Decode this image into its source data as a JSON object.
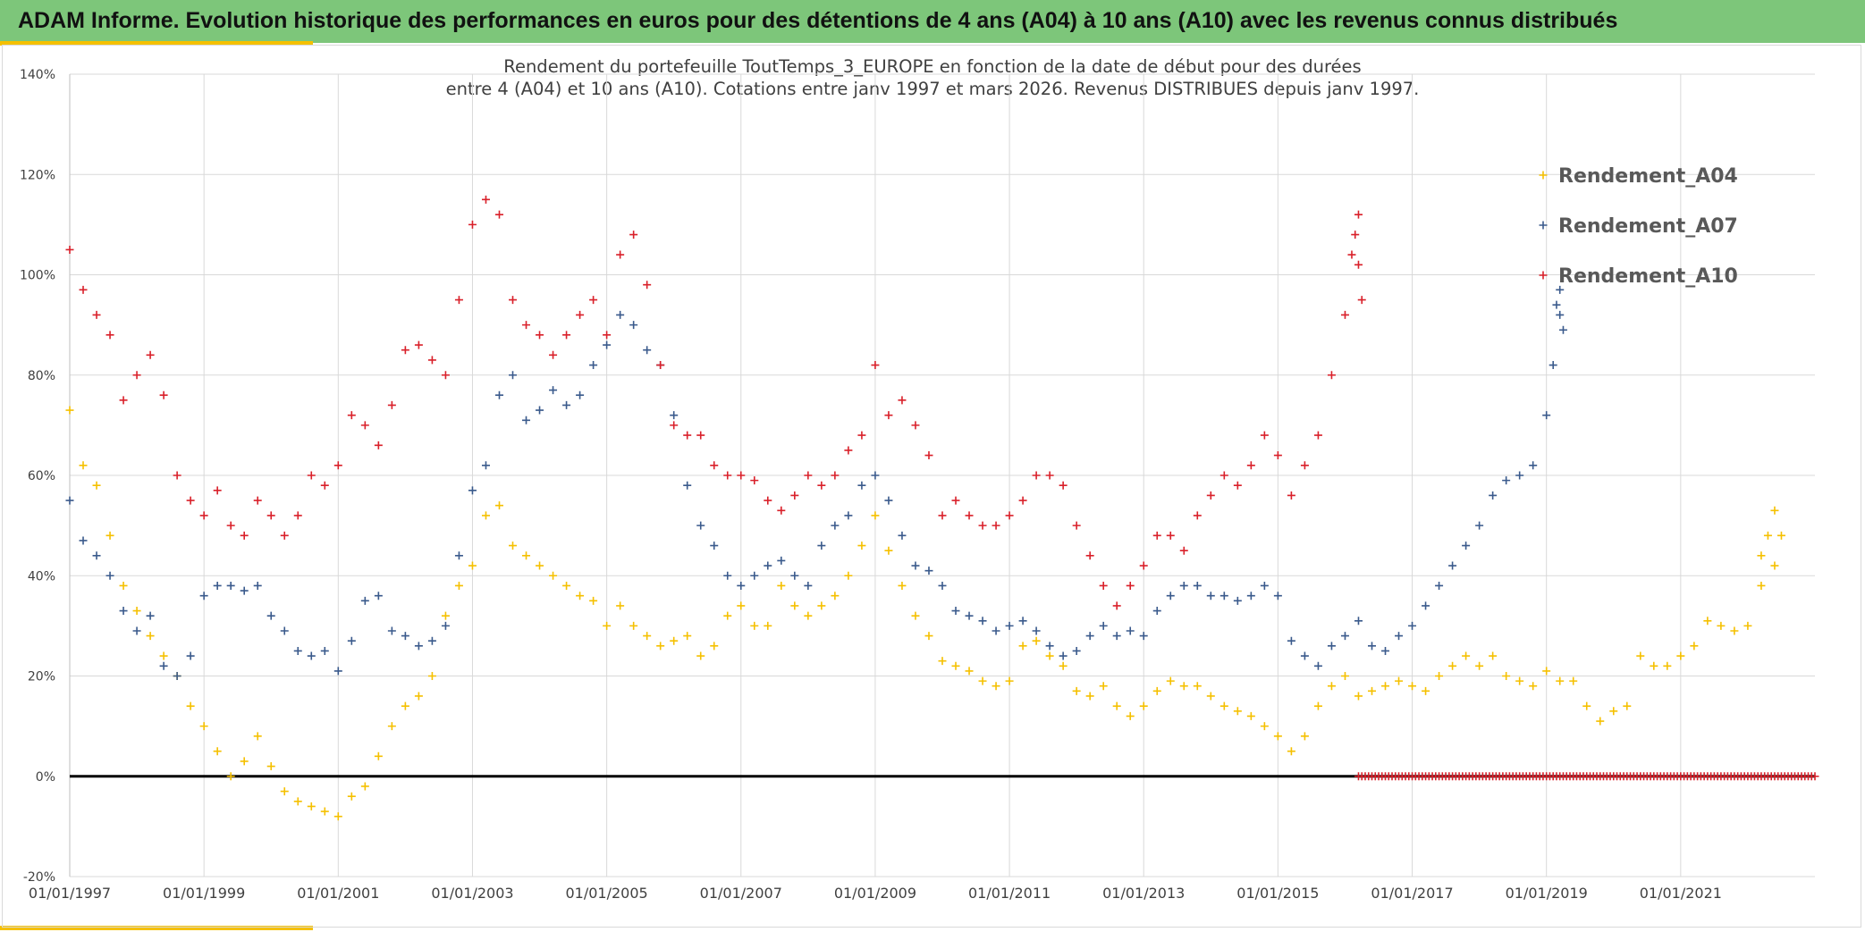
{
  "header": {
    "title": "ADAM Informe. Evolution historique des performances en euros pour des détentions de 4 ans (A04) à 10 ans (A10) avec les revenus connus distribués"
  },
  "colors": {
    "banner": "#7dc67a",
    "accent": "#f5c000",
    "a04": "#f5c000",
    "a07": "#3a5a8c",
    "a10": "#d9202a",
    "zero_line": "#000000",
    "grid": "#d9d9d9"
  },
  "chart_data": {
    "type": "scatter",
    "title_line1": "Rendement du portefeuille ToutTemps_3_EUROPE en fonction de la date de début pour des durées",
    "title_line2": "entre 4 (A04) et 10 ans (A10). Cotations entre janv 1997 et mars 2026. Revenus DISTRIBUES depuis janv 1997.",
    "xlabel": "",
    "ylabel": "",
    "x_range": [
      1997.0,
      2023.0
    ],
    "ylim": [
      -20,
      140
    ],
    "y_ticks": [
      -20,
      0,
      20,
      40,
      60,
      80,
      100,
      120,
      140
    ],
    "y_tick_labels": [
      "-20%",
      "0%",
      "20%",
      "40%",
      "60%",
      "80%",
      "100%",
      "120%",
      "140%"
    ],
    "x_ticks": [
      1997,
      1999,
      2001,
      2003,
      2005,
      2007,
      2009,
      2011,
      2013,
      2015,
      2017,
      2019,
      2021
    ],
    "x_tick_labels": [
      "01/01/1997",
      "01/01/1999",
      "01/01/2001",
      "01/01/2003",
      "01/01/2005",
      "01/01/2007",
      "01/01/2009",
      "01/01/2011",
      "01/01/2013",
      "01/01/2015",
      "01/01/2017",
      "01/01/2019",
      "01/01/2021"
    ],
    "grid": true,
    "legend_position": "top-right",
    "marker": "+",
    "series": [
      {
        "name": "Rendement_A04",
        "color": "#f5c000",
        "x": [
          1997.0,
          1997.2,
          1997.4,
          1997.6,
          1997.8,
          1998.0,
          1998.2,
          1998.4,
          1998.6,
          1998.8,
          1999.0,
          1999.2,
          1999.4,
          1999.6,
          1999.8,
          2000.0,
          2000.2,
          2000.4,
          2000.6,
          2000.8,
          2001.0,
          2001.2,
          2001.4,
          2001.6,
          2001.8,
          2002.0,
          2002.2,
          2002.4,
          2002.6,
          2002.8,
          2003.0,
          2003.2,
          2003.4,
          2003.6,
          2003.8,
          2004.0,
          2004.2,
          2004.4,
          2004.6,
          2004.8,
          2005.0,
          2005.2,
          2005.4,
          2005.6,
          2005.8,
          2006.0,
          2006.2,
          2006.4,
          2006.6,
          2006.8,
          2007.0,
          2007.2,
          2007.4,
          2007.6,
          2007.8,
          2008.0,
          2008.2,
          2008.4,
          2008.6,
          2008.8,
          2009.0,
          2009.2,
          2009.4,
          2009.6,
          2009.8,
          2010.0,
          2010.2,
          2010.4,
          2010.6,
          2010.8,
          2011.0,
          2011.2,
          2011.4,
          2011.6,
          2011.8,
          2012.0,
          2012.2,
          2012.4,
          2012.6,
          2012.8,
          2013.0,
          2013.2,
          2013.4,
          2013.6,
          2013.8,
          2014.0,
          2014.2,
          2014.4,
          2014.6,
          2014.8,
          2015.0,
          2015.2,
          2015.4,
          2015.6,
          2015.8,
          2016.0,
          2016.2,
          2016.4,
          2016.6,
          2016.8,
          2017.0,
          2017.2,
          2017.4,
          2017.6,
          2017.8,
          2018.0,
          2018.2,
          2018.4,
          2018.6,
          2018.8,
          2019.0,
          2019.2,
          2019.4,
          2019.6,
          2019.8,
          2020.0,
          2020.2,
          2020.4,
          2020.6,
          2020.8,
          2021.0,
          2021.2,
          2021.4,
          2021.6,
          2021.8,
          2022.0,
          2022.2,
          2022.4
        ],
        "values": [
          73,
          62,
          58,
          48,
          38,
          33,
          28,
          24,
          20,
          14,
          10,
          5,
          0,
          3,
          8,
          2,
          -3,
          -5,
          -6,
          -7,
          -8,
          -4,
          -2,
          4,
          10,
          14,
          16,
          20,
          32,
          38,
          42,
          52,
          54,
          46,
          44,
          42,
          40,
          38,
          36,
          35,
          30,
          34,
          30,
          28,
          26,
          27,
          28,
          24,
          26,
          32,
          34,
          30,
          30,
          38,
          34,
          32,
          34,
          36,
          40,
          46,
          52,
          45,
          38,
          32,
          28,
          23,
          22,
          21,
          19,
          18,
          19,
          26,
          27,
          24,
          22,
          17,
          16,
          18,
          14,
          12,
          14,
          17,
          19,
          18,
          18,
          16,
          14,
          13,
          12,
          10,
          8,
          5,
          8,
          14,
          18,
          20,
          16,
          17,
          18,
          19,
          18,
          17,
          20,
          22,
          24,
          22,
          24,
          20,
          19,
          18,
          21,
          19,
          19,
          14,
          11,
          13,
          14,
          24,
          22,
          22,
          24,
          26,
          31,
          30,
          29,
          30,
          38,
          42
        ],
        "x_tail": [
          2022.2,
          2022.3,
          2022.4,
          2022.5
        ],
        "values_tail": [
          44,
          48,
          53,
          48
        ]
      },
      {
        "name": "Rendement_A07",
        "color": "#3a5a8c",
        "x": [
          1997.0,
          1997.2,
          1997.4,
          1997.6,
          1997.8,
          1998.0,
          1998.2,
          1998.4,
          1998.6,
          1998.8,
          1999.0,
          1999.2,
          1999.4,
          1999.6,
          1999.8,
          2000.0,
          2000.2,
          2000.4,
          2000.6,
          2000.8,
          2001.0,
          2001.2,
          2001.4,
          2001.6,
          2001.8,
          2002.0,
          2002.2,
          2002.4,
          2002.6,
          2002.8,
          2003.0,
          2003.2,
          2003.4,
          2003.6,
          2003.8,
          2004.0,
          2004.2,
          2004.4,
          2004.6,
          2004.8,
          2005.0,
          2005.2,
          2005.4,
          2005.6,
          2005.8,
          2006.0,
          2006.2,
          2006.4,
          2006.6,
          2006.8,
          2007.0,
          2007.2,
          2007.4,
          2007.6,
          2007.8,
          2008.0,
          2008.2,
          2008.4,
          2008.6,
          2008.8,
          2009.0,
          2009.2,
          2009.4,
          2009.6,
          2009.8,
          2010.0,
          2010.2,
          2010.4,
          2010.6,
          2010.8,
          2011.0,
          2011.2,
          2011.4,
          2011.6,
          2011.8,
          2012.0,
          2012.2,
          2012.4,
          2012.6,
          2012.8,
          2013.0,
          2013.2,
          2013.4,
          2013.6,
          2013.8,
          2014.0,
          2014.2,
          2014.4,
          2014.6,
          2014.8,
          2015.0,
          2015.2,
          2015.4,
          2015.6,
          2015.8,
          2016.0,
          2016.2,
          2016.4,
          2016.6,
          2016.8,
          2017.0,
          2017.2,
          2017.4,
          2017.6,
          2017.8,
          2018.0,
          2018.2,
          2018.4,
          2018.6,
          2018.8,
          2019.0,
          2019.1,
          2019.2
        ],
        "values": [
          55,
          47,
          44,
          40,
          33,
          29,
          32,
          22,
          20,
          24,
          36,
          38,
          38,
          37,
          38,
          32,
          29,
          25,
          24,
          25,
          21,
          27,
          35,
          36,
          29,
          28,
          26,
          27,
          30,
          44,
          57,
          62,
          76,
          80,
          71,
          73,
          77,
          74,
          76,
          82,
          86,
          92,
          90,
          85,
          82,
          72,
          58,
          50,
          46,
          40,
          38,
          40,
          42,
          43,
          40,
          38,
          46,
          50,
          52,
          58,
          60,
          55,
          48,
          42,
          41,
          38,
          33,
          32,
          31,
          29,
          30,
          31,
          29,
          26,
          24,
          25,
          28,
          30,
          28,
          29,
          28,
          33,
          36,
          38,
          38,
          36,
          36,
          35,
          36,
          38,
          36,
          27,
          24,
          22,
          26,
          28,
          31,
          26,
          25,
          28,
          30,
          34,
          38,
          42,
          46,
          50,
          56,
          59,
          60,
          62,
          72,
          82,
          92
        ],
        "x_tail": [
          2019.15,
          2019.2,
          2019.25
        ],
        "values_tail": [
          94,
          97,
          89
        ]
      },
      {
        "name": "Rendement_A10",
        "color": "#d9202a",
        "x": [
          1997.0,
          1997.2,
          1997.4,
          1997.6,
          1997.8,
          1998.0,
          1998.2,
          1998.4,
          1998.6,
          1998.8,
          1999.0,
          1999.2,
          1999.4,
          1999.6,
          1999.8,
          2000.0,
          2000.2,
          2000.4,
          2000.6,
          2000.8,
          2001.0,
          2001.2,
          2001.4,
          2001.6,
          2001.8,
          2002.0,
          2002.2,
          2002.4,
          2002.6,
          2002.8,
          2003.0,
          2003.2,
          2003.4,
          2003.6,
          2003.8,
          2004.0,
          2004.2,
          2004.4,
          2004.6,
          2004.8,
          2005.0,
          2005.2,
          2005.4,
          2005.6,
          2005.8,
          2006.0,
          2006.2,
          2006.4,
          2006.6,
          2006.8,
          2007.0,
          2007.2,
          2007.4,
          2007.6,
          2007.8,
          2008.0,
          2008.2,
          2008.4,
          2008.6,
          2008.8,
          2009.0,
          2009.2,
          2009.4,
          2009.6,
          2009.8,
          2010.0,
          2010.2,
          2010.4,
          2010.6,
          2010.8,
          2011.0,
          2011.2,
          2011.4,
          2011.6,
          2011.8,
          2012.0,
          2012.2,
          2012.4,
          2012.6,
          2012.8,
          2013.0,
          2013.2,
          2013.4,
          2013.6,
          2013.8,
          2014.0,
          2014.2,
          2014.4,
          2014.6,
          2014.8,
          2015.0,
          2015.2,
          2015.4,
          2015.6,
          2015.8,
          2016.0,
          2016.1,
          2016.2
        ],
        "values": [
          105,
          97,
          92,
          88,
          75,
          80,
          84,
          76,
          60,
          55,
          52,
          57,
          50,
          48,
          55,
          52,
          48,
          52,
          60,
          58,
          62,
          72,
          70,
          66,
          74,
          85,
          86,
          83,
          80,
          95,
          110,
          115,
          112,
          95,
          90,
          88,
          84,
          88,
          92,
          95,
          88,
          104,
          108,
          98,
          82,
          70,
          68,
          68,
          62,
          60,
          60,
          59,
          55,
          53,
          56,
          60,
          58,
          60,
          65,
          68,
          82,
          72,
          75,
          70,
          64,
          52,
          55,
          52,
          50,
          50,
          52,
          55,
          60,
          60,
          58,
          50,
          44,
          38,
          34,
          38,
          42,
          48,
          48,
          45,
          52,
          56,
          60,
          58,
          62,
          68,
          64,
          56,
          62,
          68,
          80,
          92,
          104,
          112
        ],
        "x_tail": [
          2016.15,
          2016.2,
          2016.25
        ],
        "values_tail": [
          108,
          102,
          95
        ]
      }
    ],
    "zero_series": {
      "name": "Rendement_A10",
      "color": "#d9202a",
      "x_start": 2016.2,
      "x_end": 2023.0,
      "value": 0
    }
  }
}
